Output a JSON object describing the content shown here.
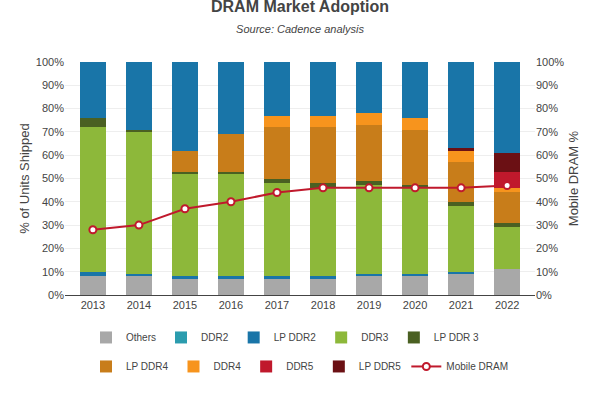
{
  "chart_data": {
    "type": "bar",
    "title": "DRAM Market Adoption",
    "subtitle": "Source: Cadence analysis",
    "y_label": "% of Units Shipped",
    "y2_label": "Mobile DRAM %",
    "stacked": true,
    "grid": true,
    "legend": "bottom",
    "categories": [
      "2013",
      "2014",
      "2015",
      "2016",
      "2017",
      "2018",
      "2019",
      "2020",
      "2021",
      "2022"
    ],
    "ylim": [
      0,
      100
    ],
    "yticks": [
      {
        "value": 0,
        "label": "0%"
      },
      {
        "value": 10,
        "label": "10%"
      },
      {
        "value": 20,
        "label": "20%"
      },
      {
        "value": 30,
        "label": "30%"
      },
      {
        "value": 40,
        "label": "40%"
      },
      {
        "value": 50,
        "label": "50%"
      },
      {
        "value": 60,
        "label": "60%"
      },
      {
        "value": 70,
        "label": "70%"
      },
      {
        "value": 80,
        "label": "80%"
      },
      {
        "value": 90,
        "label": "90%"
      },
      {
        "value": 100,
        "label": "100%"
      }
    ],
    "y2lim": [
      0,
      100
    ],
    "y2ticks": [
      {
        "value": 0,
        "label": "0%"
      },
      {
        "value": 10,
        "label": "10%"
      },
      {
        "value": 20,
        "label": "20%"
      },
      {
        "value": 30,
        "label": "30%"
      },
      {
        "value": 40,
        "label": "40%"
      },
      {
        "value": 50,
        "label": "50%"
      },
      {
        "value": 60,
        "label": "60%"
      },
      {
        "value": 70,
        "label": "70%"
      },
      {
        "value": 80,
        "label": "80%"
      },
      {
        "value": 90,
        "label": "90%"
      },
      {
        "value": 100,
        "label": "100%"
      }
    ],
    "series": [
      {
        "name": "Others",
        "type": "bar",
        "color": "#a8a8a8",
        "values": [
          8,
          8,
          7,
          7,
          7,
          7,
          8,
          8,
          9,
          11
        ]
      },
      {
        "name": "DDR2",
        "type": "bar",
        "color": "#2b9cae",
        "values": [
          0,
          0,
          0,
          0,
          0,
          0,
          0,
          0,
          0,
          0
        ]
      },
      {
        "name": "LP DDR2",
        "type": "bar",
        "color": "#1975a8",
        "values": [
          2,
          1,
          1,
          1,
          1,
          1,
          1,
          1,
          1,
          0
        ]
      },
      {
        "name": "DDR3",
        "type": "bar",
        "color": "#8db83a",
        "values": [
          62,
          61,
          44,
          44,
          40,
          38,
          38,
          37,
          28,
          18
        ]
      },
      {
        "name": "LP DDR 3",
        "type": "bar",
        "color": "#4a6022",
        "values": [
          4,
          1,
          1,
          1,
          2,
          2,
          2,
          1,
          2,
          2
        ]
      },
      {
        "name": "LP DDR4",
        "type": "bar",
        "color": "#c87d1a",
        "values": [
          0,
          0,
          9,
          16,
          22,
          24,
          24,
          24,
          17,
          13
        ]
      },
      {
        "name": "DDR4",
        "type": "bar",
        "color": "#f7941d",
        "values": [
          0,
          0,
          0,
          0,
          5,
          5,
          5,
          5,
          5,
          2
        ]
      },
      {
        "name": "DDR5",
        "type": "bar",
        "color": "#c0192c",
        "values": [
          0,
          0,
          0,
          0,
          0,
          0,
          0,
          0,
          0,
          7
        ]
      },
      {
        "name": "LP DDR5",
        "type": "bar",
        "color": "#6b1014",
        "values": [
          0,
          0,
          0,
          0,
          0,
          0,
          0,
          0,
          1,
          8
        ]
      },
      {
        "name": "LP DDR2",
        "type": "bar",
        "color": "#1975a8",
        "values": [
          24,
          29,
          38,
          31,
          23,
          23,
          22,
          24,
          37,
          39
        ]
      },
      {
        "name": "Mobile DRAM",
        "type": "line",
        "axis": "y2",
        "color": "#c0192c",
        "marker": "circle",
        "values": [
          28,
          30,
          37,
          40,
          44,
          46,
          46,
          46,
          46,
          47
        ]
      }
    ]
  }
}
